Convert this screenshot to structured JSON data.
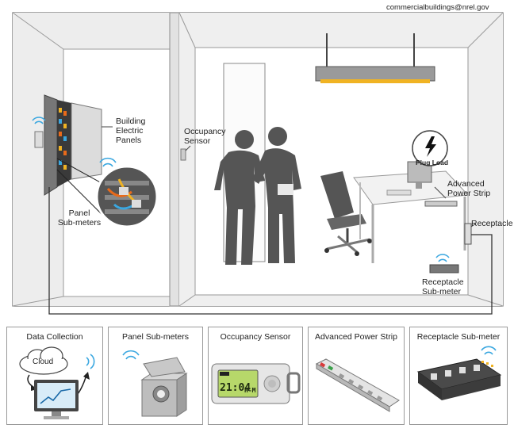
{
  "header": {
    "email": "commercialbuildings@nrel.gov"
  },
  "labels": {
    "building_electric_panels": [
      "Building",
      "Electric",
      "Panels"
    ],
    "occupancy_sensor": [
      "Occupancy",
      "Sensor"
    ],
    "panel_submeters": [
      "Panel",
      "Sub-meters"
    ],
    "plug_load": "Plug Load",
    "advanced_power_strip": [
      "Advanced",
      "Power Strip"
    ],
    "receptacle": "Receptacle",
    "receptacle_submeter": [
      "Receptacle",
      "Sub-meter"
    ]
  },
  "cards": {
    "data_collection": {
      "title": "Data Collection",
      "cloud_label": "Cloud"
    },
    "panel_submeters": {
      "title": "Panel Sub-meters"
    },
    "occupancy_sensor": {
      "title": "Occupancy Sensor",
      "display_time": "21:04",
      "display_unit": "H-M"
    },
    "advanced_power_strip": {
      "title": "Advanced Power Strip"
    },
    "receptacle_submeter": {
      "title": "Receptacle Sub-meter"
    }
  },
  "colors": {
    "wall": "#e9e9e9",
    "outline": "#555555",
    "silhouette": "#555555",
    "wifi": "#3aa7e0",
    "light": "#f0b323",
    "wire": "#333333"
  }
}
